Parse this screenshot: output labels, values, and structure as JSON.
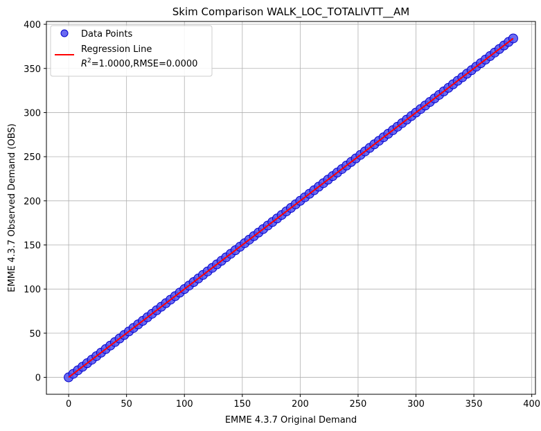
{
  "chart_data": {
    "type": "scatter",
    "title": "Skim Comparison WALK_LOC_TOTALIVTT__AM",
    "xlabel": "EMME 4.3.7 Original Demand",
    "ylabel": "EMME 4.3.7 Observed Demand (OBS)",
    "xlim": [
      -19.2,
      403.2
    ],
    "ylim": [
      -19.2,
      403.2
    ],
    "xticks": [
      0,
      50,
      100,
      150,
      200,
      250,
      300,
      350,
      400
    ],
    "yticks": [
      0,
      50,
      100,
      150,
      200,
      250,
      300,
      350,
      400
    ],
    "grid": true,
    "legend_position": "top-left",
    "series": [
      {
        "name": "Data Points",
        "kind": "scatter",
        "color": "#5050ee",
        "edge_color": "#0000cc",
        "x_range": [
          0,
          384
        ],
        "relation": "y = x",
        "x": [
          0,
          4,
          8,
          12,
          16,
          20,
          24,
          28,
          32,
          36,
          40,
          44,
          48,
          52,
          56,
          60,
          64,
          68,
          72,
          76,
          80,
          84,
          88,
          92,
          96,
          100,
          104,
          108,
          112,
          116,
          120,
          124,
          128,
          132,
          136,
          140,
          144,
          148,
          152,
          156,
          160,
          164,
          168,
          172,
          176,
          180,
          184,
          188,
          192,
          196,
          200,
          204,
          208,
          212,
          216,
          220,
          224,
          228,
          232,
          236,
          240,
          244,
          248,
          252,
          256,
          260,
          264,
          268,
          272,
          276,
          280,
          284,
          288,
          292,
          296,
          300,
          304,
          308,
          312,
          316,
          320,
          324,
          328,
          332,
          336,
          340,
          344,
          348,
          352,
          356,
          360,
          364,
          368,
          372,
          376,
          380,
          384
        ],
        "y": [
          0,
          4,
          8,
          12,
          16,
          20,
          24,
          28,
          32,
          36,
          40,
          44,
          48,
          52,
          56,
          60,
          64,
          68,
          72,
          76,
          80,
          84,
          88,
          92,
          96,
          100,
          104,
          108,
          112,
          116,
          120,
          124,
          128,
          132,
          136,
          140,
          144,
          148,
          152,
          156,
          160,
          164,
          168,
          172,
          176,
          180,
          184,
          188,
          192,
          196,
          200,
          204,
          208,
          212,
          216,
          220,
          224,
          228,
          232,
          236,
          240,
          244,
          248,
          252,
          256,
          260,
          264,
          268,
          272,
          276,
          280,
          284,
          288,
          292,
          296,
          300,
          304,
          308,
          312,
          316,
          320,
          324,
          328,
          332,
          336,
          340,
          344,
          348,
          352,
          356,
          360,
          364,
          368,
          372,
          376,
          380,
          384
        ]
      },
      {
        "name": "Regression Line",
        "kind": "line",
        "color": "#ff0000",
        "x": [
          0,
          384
        ],
        "y": [
          0,
          384
        ]
      }
    ],
    "legend": {
      "items": [
        {
          "label": "Data Points",
          "kind": "marker",
          "color": "#5050ee"
        },
        {
          "label": "Regression Line",
          "kind": "line",
          "color": "#ff0000"
        }
      ],
      "stats_prefix": "R",
      "stats_sup": "2",
      "stats_suffix": "=1.0000,RMSE=0.0000"
    }
  }
}
